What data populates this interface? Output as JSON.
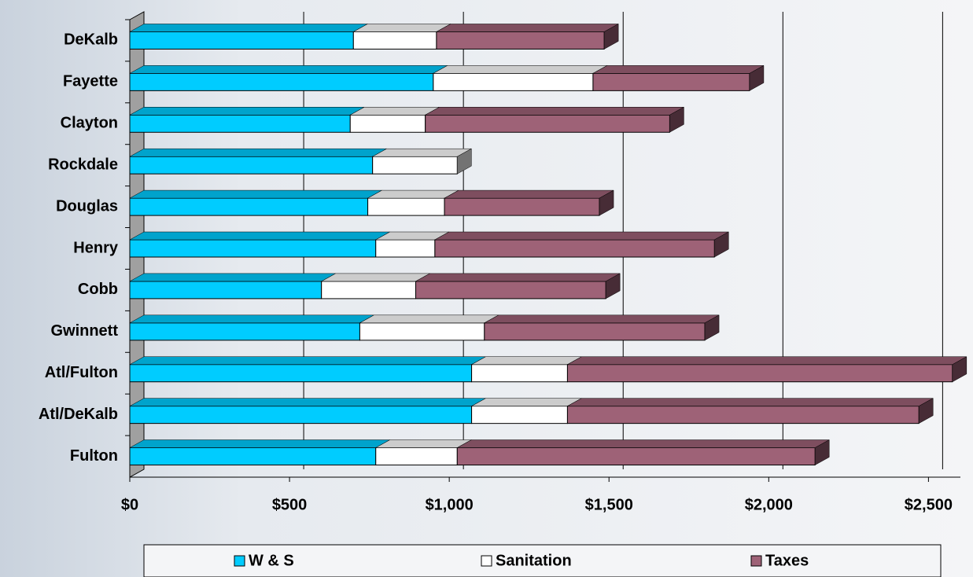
{
  "chart_data": {
    "type": "bar",
    "orientation": "horizontal",
    "stacked": true,
    "categories": [
      "DeKalb",
      "Fayette",
      "Clayton",
      "Rockdale",
      "Douglas",
      "Henry",
      "Cobb",
      "Gwinnett",
      "Atl/Fulton",
      "Atl/DeKalb",
      "Fulton"
    ],
    "series": [
      {
        "name": "W & S",
        "color": "#00ccff",
        "values": [
          700,
          950,
          690,
          760,
          745,
          770,
          600,
          720,
          1070,
          1070,
          770
        ]
      },
      {
        "name": "Sanitation",
        "color": "#ffffff",
        "values": [
          260,
          500,
          235,
          265,
          240,
          185,
          295,
          390,
          300,
          300,
          255
        ]
      },
      {
        "name": "Taxes",
        "color": "#9e6277",
        "values": [
          525,
          490,
          765,
          0,
          485,
          875,
          595,
          690,
          1205,
          1100,
          1120
        ]
      }
    ],
    "xlim": [
      0,
      2600
    ],
    "xticks": [
      {
        "value": 0,
        "label": "$0"
      },
      {
        "value": 500,
        "label": "$500"
      },
      {
        "value": 1000,
        "label": "$1,000"
      },
      {
        "value": 1500,
        "label": "$1,500"
      },
      {
        "value": 2000,
        "label": "$2,000"
      },
      {
        "value": 2500,
        "label": "$2,500"
      }
    ],
    "grid": true,
    "legend": "bottom"
  }
}
